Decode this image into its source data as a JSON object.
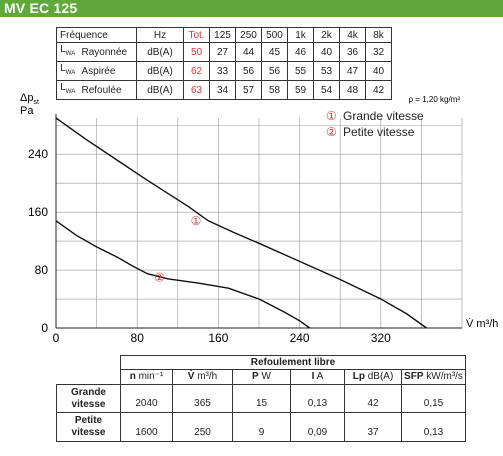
{
  "header": {
    "title": "MV EC 125"
  },
  "noise_table": {
    "header": {
      "label": "Fréquence",
      "unit": "Hz",
      "total": "Tot.",
      "bands": [
        "125",
        "250",
        "500",
        "1k",
        "2k",
        "4k",
        "8k"
      ]
    },
    "rows": [
      {
        "prefix": "L",
        "sub": "WA",
        "name": "Rayonnée",
        "unit": "dB(A)",
        "total": "50",
        "values": [
          "27",
          "44",
          "45",
          "46",
          "40",
          "36",
          "32"
        ]
      },
      {
        "prefix": "L",
        "sub": "WA",
        "name": "Aspirée",
        "unit": "dB(A)",
        "total": "62",
        "values": [
          "33",
          "56",
          "56",
          "55",
          "53",
          "47",
          "40"
        ]
      },
      {
        "prefix": "L",
        "sub": "WA",
        "name": "Refoulée",
        "unit": "dB(A)",
        "total": "63",
        "values": [
          "34",
          "57",
          "58",
          "59",
          "54",
          "48",
          "42"
        ]
      }
    ]
  },
  "chart_data": {
    "type": "line",
    "ylabel_line1": "Δp",
    "ylabel_sub": "st",
    "ylabel_line2": "Pa",
    "xlabel": "V̇ m³/h",
    "density_note": "ρ = 1,20 kg/m³",
    "xlim": [
      0,
      400
    ],
    "ylim": [
      0,
      290
    ],
    "x_ticks": [
      0,
      80,
      160,
      240,
      320
    ],
    "y_ticks": [
      0,
      80,
      160,
      240
    ],
    "grid": true,
    "legend_position": "top-right",
    "legend": [
      {
        "marker": "①",
        "label": "Grande vitesse"
      },
      {
        "marker": "②",
        "label": "Petite vitesse"
      }
    ],
    "series": [
      {
        "marker": "①",
        "label_at": [
          138,
          148
        ],
        "points": [
          [
            0,
            290
          ],
          [
            30,
            260
          ],
          [
            60,
            232
          ],
          [
            90,
            204
          ],
          [
            110,
            186
          ],
          [
            130,
            168
          ],
          [
            150,
            148
          ],
          [
            175,
            132
          ],
          [
            200,
            117
          ],
          [
            240,
            92
          ],
          [
            280,
            67
          ],
          [
            320,
            40
          ],
          [
            345,
            20
          ],
          [
            365,
            0
          ]
        ]
      },
      {
        "marker": "②",
        "label_at": [
          102,
          70
        ],
        "points": [
          [
            0,
            148
          ],
          [
            20,
            128
          ],
          [
            40,
            112
          ],
          [
            60,
            98
          ],
          [
            75,
            86
          ],
          [
            90,
            75
          ],
          [
            110,
            68
          ],
          [
            140,
            62
          ],
          [
            170,
            55
          ],
          [
            200,
            40
          ],
          [
            225,
            22
          ],
          [
            240,
            10
          ],
          [
            250,
            0
          ]
        ]
      }
    ]
  },
  "perf_table": {
    "caption": "Refoulement libre",
    "columns": [
      {
        "sym": "n",
        "unit": "min⁻¹"
      },
      {
        "sym": "V̇",
        "unit": "m³/h"
      },
      {
        "sym": "P",
        "unit": "W"
      },
      {
        "sym": "I",
        "unit": "A"
      },
      {
        "sym": "Lp",
        "unit": "dB(A)"
      },
      {
        "sym": "SFP",
        "unit": "kW/m³/s"
      }
    ],
    "rows": [
      {
        "label_l1": "Grande",
        "label_l2": "vitesse",
        "values": [
          "2040",
          "365",
          "15",
          "0,13",
          "42",
          "0,15"
        ]
      },
      {
        "label_l1": "Petite",
        "label_l2": "vitesse",
        "values": [
          "1600",
          "250",
          "9",
          "0,09",
          "37",
          "0,13"
        ]
      }
    ]
  }
}
